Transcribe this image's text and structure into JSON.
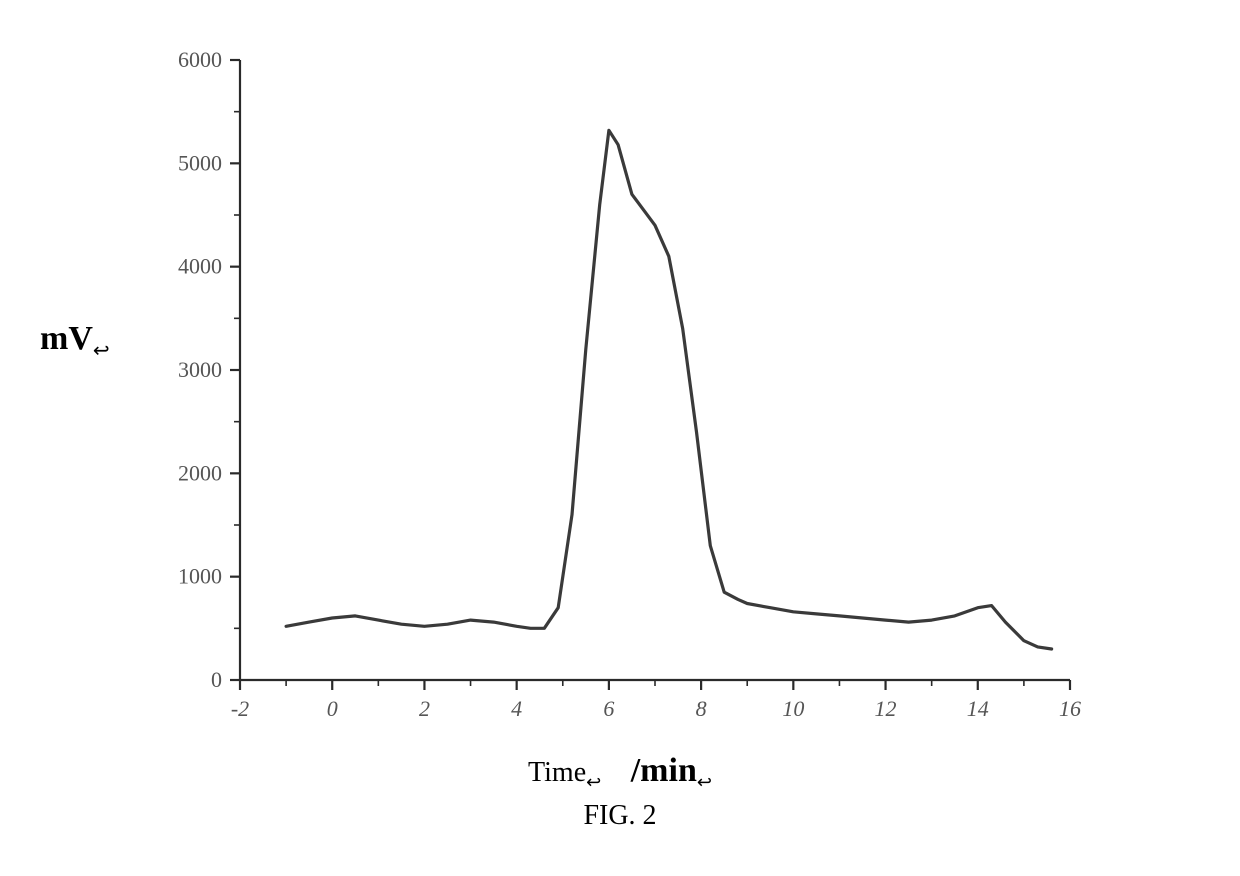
{
  "chart": {
    "type": "line",
    "xlim": [
      -2,
      16
    ],
    "ylim": [
      0,
      6000
    ],
    "xticks_major": [
      -2,
      0,
      2,
      4,
      6,
      8,
      10,
      12,
      14,
      16
    ],
    "xticks_minor_step": 1,
    "yticks_major": [
      0,
      1000,
      2000,
      3000,
      4000,
      5000,
      6000
    ],
    "yticks_minor_step": 500,
    "tick_len_major": 10,
    "tick_len_minor": 6,
    "axis_color": "#2a2a2a",
    "axis_width": 2.2,
    "line_color": "#3a3a3a",
    "line_width": 3.2,
    "tick_font_size": 22,
    "background_color": "#ffffff",
    "series_x": [
      -1.0,
      -0.5,
      0.0,
      0.5,
      1.0,
      1.5,
      2.0,
      2.5,
      3.0,
      3.5,
      4.0,
      4.3,
      4.6,
      4.9,
      5.2,
      5.5,
      5.8,
      6.0,
      6.2,
      6.5,
      6.8,
      7.0,
      7.3,
      7.6,
      7.9,
      8.2,
      8.5,
      8.8,
      9.0,
      9.5,
      10.0,
      10.5,
      11.0,
      11.5,
      12.0,
      12.5,
      13.0,
      13.5,
      14.0,
      14.3,
      14.6,
      15.0,
      15.3,
      15.6
    ],
    "series_y": [
      520,
      560,
      600,
      620,
      580,
      540,
      520,
      540,
      580,
      560,
      520,
      500,
      500,
      700,
      1600,
      3200,
      4600,
      5320,
      5180,
      4700,
      4520,
      4400,
      4100,
      3400,
      2400,
      1300,
      850,
      780,
      740,
      700,
      660,
      640,
      620,
      600,
      580,
      560,
      580,
      620,
      700,
      720,
      560,
      380,
      320,
      300
    ]
  },
  "labels": {
    "y_label": "mV",
    "y_label_suffix": "↩",
    "x_label_time": "Time",
    "x_label_time_suffix": "↩",
    "x_label_unit": "/min",
    "x_label_unit_suffix": "↩",
    "caption": "FIG. 2"
  }
}
